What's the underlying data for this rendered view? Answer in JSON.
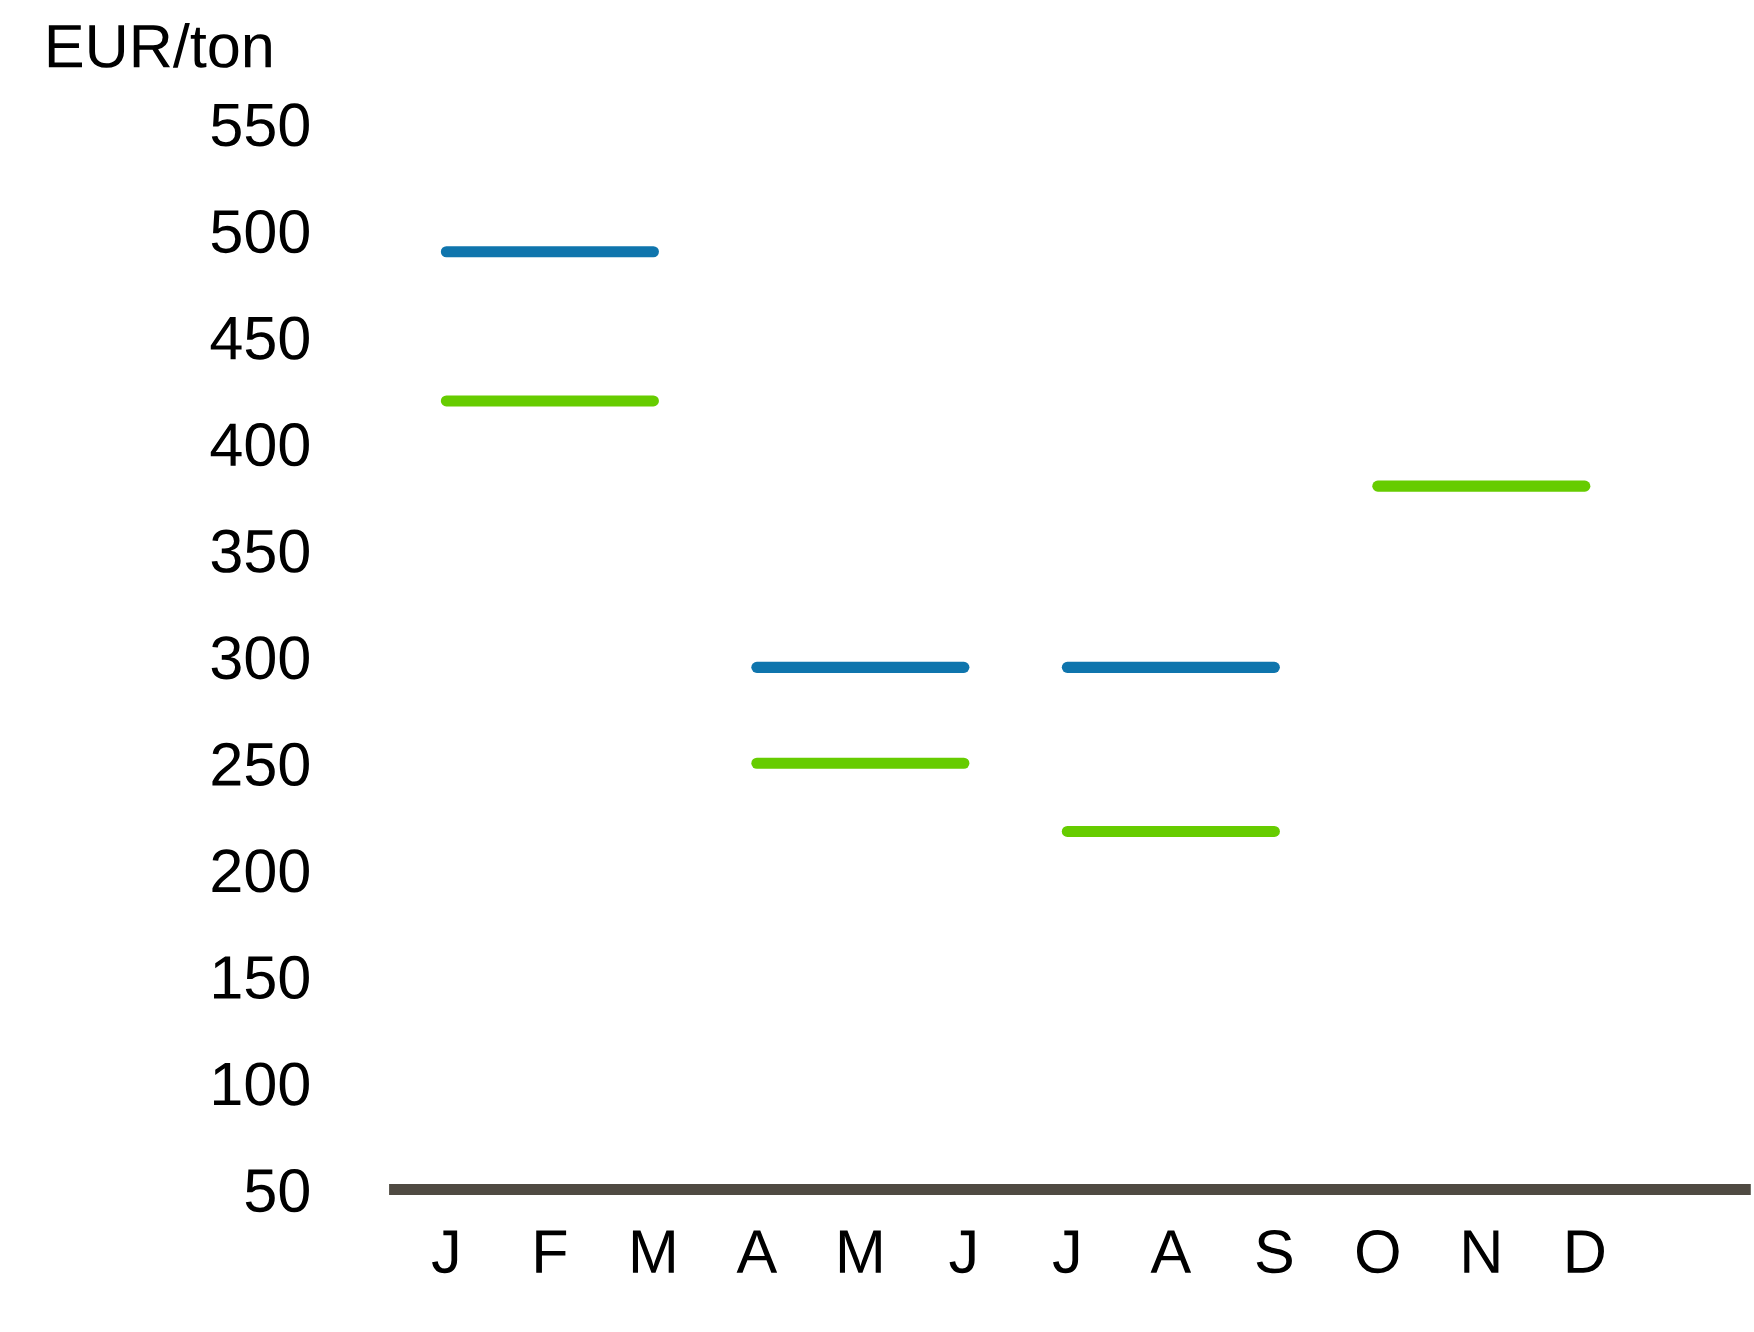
{
  "chart_data": {
    "type": "line",
    "ylabel": "EUR/ton",
    "categories": [
      "J",
      "F",
      "M",
      "A",
      "M",
      "J",
      "J",
      "A",
      "S",
      "O",
      "N",
      "D"
    ],
    "series": [
      {
        "color": "#0f75ad",
        "values": [
          490,
          490,
          490,
          null,
          null,
          null,
          null,
          null,
          null,
          null,
          null,
          null
        ]
      },
      {
        "color": "#66cc00",
        "values": [
          420,
          420,
          420,
          null,
          null,
          null,
          null,
          null,
          null,
          null,
          null,
          null
        ]
      },
      {
        "color": "#0f75ad",
        "values": [
          null,
          null,
          null,
          295,
          295,
          295,
          null,
          null,
          null,
          null,
          null,
          null
        ]
      },
      {
        "color": "#66cc00",
        "values": [
          null,
          null,
          null,
          250,
          250,
          250,
          null,
          null,
          null,
          null,
          null,
          null
        ]
      },
      {
        "color": "#0f75ad",
        "values": [
          null,
          null,
          null,
          null,
          null,
          null,
          295,
          295,
          295,
          null,
          null,
          null
        ]
      },
      {
        "color": "#66cc00",
        "values": [
          null,
          null,
          null,
          null,
          null,
          null,
          218,
          218,
          218,
          null,
          null,
          null
        ]
      },
      {
        "color": "#66cc00",
        "values": [
          null,
          null,
          null,
          null,
          null,
          null,
          null,
          null,
          null,
          380,
          380,
          380
        ]
      }
    ],
    "ylim": [
      50,
      550
    ],
    "yticks": [
      50,
      100,
      150,
      200,
      250,
      300,
      350,
      400,
      450,
      500,
      550
    ],
    "grid": false,
    "legend": false,
    "marker": "none",
    "line_style": "solid"
  }
}
